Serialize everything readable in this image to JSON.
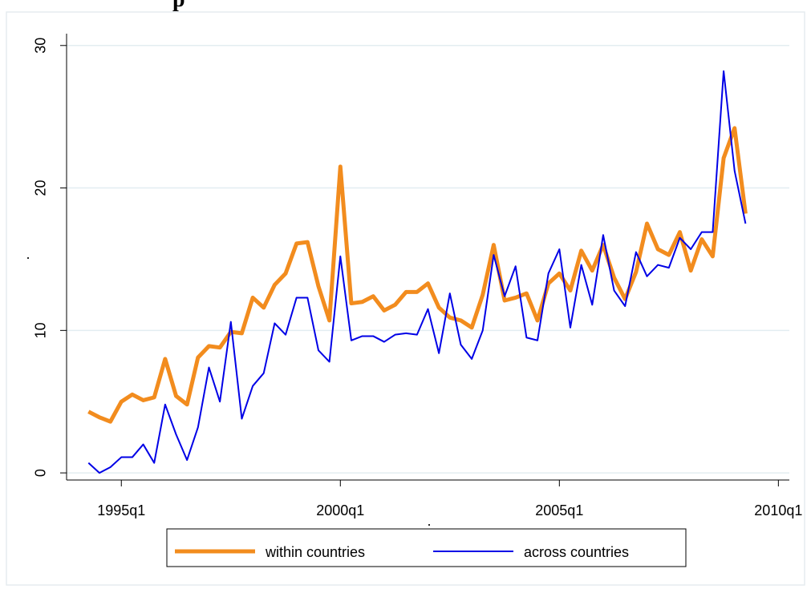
{
  "chart_data": {
    "type": "line",
    "title": "p",
    "x_label": ".",
    "y_label": ".",
    "x": [
      137,
      138,
      139,
      140,
      141,
      142,
      143,
      144,
      145,
      146,
      147,
      148,
      149,
      150,
      151,
      152,
      153,
      154,
      155,
      156,
      157,
      158,
      159,
      160,
      161,
      162,
      163,
      164,
      165,
      166,
      167,
      168,
      169,
      170,
      171,
      172,
      173,
      174,
      175,
      176,
      177,
      178,
      179,
      180,
      181,
      182,
      183,
      184,
      185,
      186,
      187,
      188,
      189,
      190,
      191,
      192,
      193,
      194,
      195,
      196,
      197
    ],
    "series": [
      {
        "name": "within countries",
        "color": "#f28c1e",
        "width": 5,
        "values": [
          4.3,
          3.9,
          3.6,
          5.0,
          5.5,
          5.1,
          5.3,
          8.0,
          5.4,
          4.8,
          8.1,
          8.9,
          8.8,
          9.9,
          9.8,
          12.3,
          11.6,
          13.2,
          14.0,
          16.1,
          16.2,
          13.1,
          10.7,
          21.5,
          11.9,
          12.0,
          12.4,
          11.4,
          11.8,
          12.7,
          12.7,
          13.3,
          11.6,
          10.9,
          10.7,
          10.2,
          12.5,
          16.0,
          12.1,
          12.3,
          12.6,
          10.7,
          13.3,
          14.0,
          12.8,
          15.6,
          14.2,
          16.0,
          13.7,
          12.2,
          14.1,
          17.5,
          15.7,
          15.3,
          16.9,
          14.2,
          16.4,
          15.2,
          22.1,
          24.2,
          18.2
        ]
      },
      {
        "name": "across countries",
        "color": "#0000e6",
        "width": 2,
        "values": [
          0.7,
          0.0,
          0.4,
          1.1,
          1.1,
          2.0,
          0.7,
          4.8,
          2.7,
          0.9,
          3.2,
          7.4,
          5.0,
          10.6,
          3.8,
          6.1,
          7.0,
          10.5,
          9.7,
          12.3,
          12.3,
          8.6,
          7.8,
          15.2,
          9.3,
          9.6,
          9.6,
          9.2,
          9.7,
          9.8,
          9.7,
          11.5,
          8.4,
          12.6,
          9.0,
          8.0,
          10.0,
          15.3,
          12.4,
          14.5,
          9.5,
          9.3,
          14.0,
          15.7,
          10.2,
          14.6,
          11.8,
          16.7,
          12.8,
          11.7,
          15.5,
          13.8,
          14.6,
          14.4,
          16.5,
          15.7,
          16.9,
          16.9,
          28.2,
          21.2,
          17.5
        ]
      }
    ],
    "xlim": [
      135,
      201
    ],
    "xticks": [
      {
        "value": 140,
        "label": "1995q1"
      },
      {
        "value": 160,
        "label": "2000q1"
      },
      {
        "value": 180,
        "label": "2005q1"
      },
      {
        "value": 200,
        "label": "2010q1"
      }
    ],
    "ylim": [
      -0.5,
      31
    ],
    "yticks": [
      0,
      10,
      20,
      30
    ],
    "grid": true,
    "legend": "bottom"
  }
}
